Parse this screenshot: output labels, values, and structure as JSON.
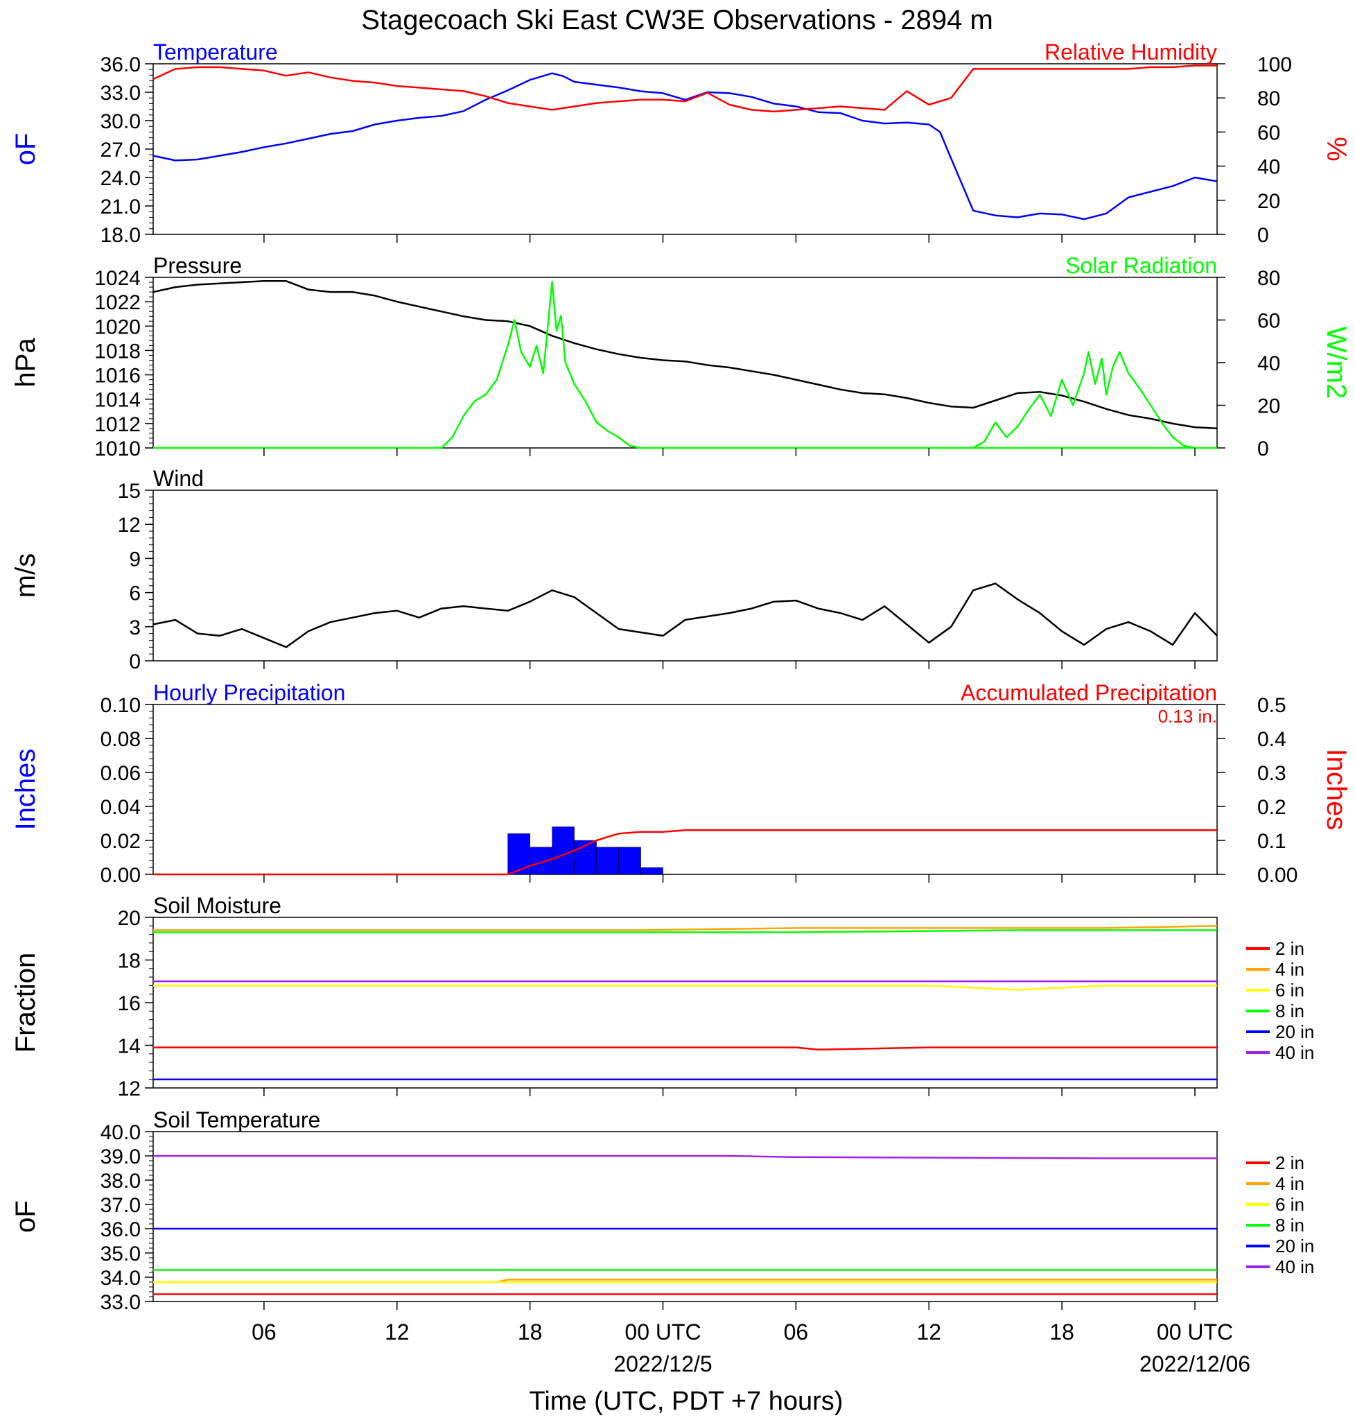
{
  "page_title": "Stagecoach Ski East CW3E Observations - 2894 m",
  "x_axis": {
    "label": "Time (UTC, PDT +7 hours)",
    "ticks": [
      {
        "hour": 6,
        "label": "06",
        "sub": ""
      },
      {
        "hour": 12,
        "label": "12",
        "sub": ""
      },
      {
        "hour": 18,
        "label": "18",
        "sub": ""
      },
      {
        "hour": 24,
        "label": "00 UTC",
        "sub": "2022/12/5"
      },
      {
        "hour": 30,
        "label": "06",
        "sub": ""
      },
      {
        "hour": 36,
        "label": "12",
        "sub": ""
      },
      {
        "hour": 42,
        "label": "18",
        "sub": ""
      },
      {
        "hour": 48,
        "label": "00 UTC",
        "sub": "2022/12/06"
      }
    ],
    "range_hours": [
      1,
      49
    ]
  },
  "colors": {
    "temperature": "#0000ff",
    "humidity": "#ff0000",
    "pressure": "#000000",
    "solar": "#00ff00",
    "wind_speed": "#000000",
    "wind_barb": "#ff0000",
    "hourly_precip": "#0000ff",
    "accum_precip": "#ff0000",
    "depth_2in": "#ff0000",
    "depth_4in": "#ffa500",
    "depth_6in": "#ffff00",
    "depth_8in": "#00ff00",
    "depth_20in": "#0000ff",
    "depth_40in": "#a020f0"
  },
  "chart_data": [
    {
      "id": "temp_rh",
      "type": "line",
      "title_left": "Temperature",
      "title_right": "Relative Humidity",
      "ylabel_left": "oF",
      "ylabel_right": "%",
      "ylim_left": [
        18,
        36
      ],
      "ylim_right": [
        0,
        100
      ],
      "yticks_left": [
        "18.0",
        "21.0",
        "24.0",
        "27.0",
        "30.0",
        "33.0",
        "36.0"
      ],
      "yticks_right": [
        "0",
        "20",
        "40",
        "60",
        "80",
        "100"
      ],
      "series": [
        {
          "name": "Temperature",
          "axis": "left",
          "color": "temperature",
          "x": [
            1,
            2,
            3,
            4,
            5,
            6,
            7,
            8,
            9,
            10,
            11,
            12,
            13,
            14,
            15,
            16,
            17,
            18,
            19,
            19.5,
            20,
            21,
            22,
            23,
            24,
            25,
            26,
            27,
            28,
            29,
            30,
            31,
            32,
            33,
            34,
            35,
            36,
            36.5,
            37,
            38,
            39,
            40,
            41,
            42,
            43,
            44,
            45,
            46,
            47,
            48,
            49
          ],
          "y": [
            26.3,
            25.8,
            25.9,
            26.3,
            26.7,
            27.2,
            27.6,
            28.1,
            28.6,
            28.9,
            29.6,
            30.0,
            30.3,
            30.5,
            31.0,
            32.2,
            33.2,
            34.3,
            35.0,
            34.7,
            34.1,
            33.8,
            33.5,
            33.1,
            32.9,
            32.2,
            33.0,
            32.9,
            32.5,
            31.8,
            31.5,
            30.9,
            30.8,
            30.0,
            29.7,
            29.8,
            29.6,
            28.8,
            26.0,
            20.5,
            20.0,
            19.8,
            20.2,
            20.1,
            19.6,
            20.2,
            21.9,
            22.5,
            23.1,
            24.0,
            23.6
          ]
        },
        {
          "name": "Relative Humidity",
          "axis": "right",
          "color": "humidity",
          "x": [
            1,
            2,
            3,
            4,
            5,
            6,
            7,
            8,
            9,
            10,
            11,
            12,
            13,
            14,
            15,
            16,
            17,
            18,
            19,
            20,
            21,
            22,
            23,
            24,
            25,
            26,
            27,
            28,
            29,
            30,
            31,
            32,
            33,
            34,
            35,
            36,
            37,
            38,
            39,
            40,
            41,
            42,
            43,
            44,
            45,
            46,
            47,
            48,
            49
          ],
          "y": [
            91,
            97,
            98,
            98,
            97,
            96,
            93,
            95,
            92,
            90,
            89,
            87,
            86,
            85,
            84,
            81,
            77,
            75,
            73,
            75,
            77,
            78,
            79,
            79,
            78,
            83,
            76,
            73,
            72,
            73,
            74,
            75,
            74,
            73,
            84,
            76,
            80,
            97,
            97,
            97,
            97,
            97,
            97,
            97,
            97,
            98,
            98,
            99,
            99
          ]
        }
      ]
    },
    {
      "id": "pressure_solar",
      "type": "line",
      "title_left": "Pressure",
      "title_right": "Solar Radiation",
      "ylabel_left": "hPa",
      "ylabel_right": "W/m2",
      "ylim_left": [
        1010,
        1024
      ],
      "ylim_right": [
        0,
        80
      ],
      "yticks_left": [
        "1010",
        "1012",
        "1014",
        "1016",
        "1018",
        "1020",
        "1022",
        "1024"
      ],
      "yticks_right": [
        "0",
        "20",
        "40",
        "60",
        "80"
      ],
      "series": [
        {
          "name": "Pressure",
          "axis": "left",
          "color": "pressure",
          "x": [
            1,
            2,
            3,
            4,
            5,
            6,
            7,
            8,
            9,
            10,
            11,
            12,
            13,
            14,
            15,
            16,
            17,
            18,
            19,
            20,
            21,
            22,
            23,
            24,
            25,
            26,
            27,
            28,
            29,
            30,
            31,
            32,
            33,
            34,
            35,
            36,
            37,
            38,
            39,
            40,
            41,
            42,
            43,
            44,
            45,
            46,
            47,
            48,
            49
          ],
          "y": [
            1022.8,
            1023.2,
            1023.4,
            1023.5,
            1023.6,
            1023.7,
            1023.7,
            1023.0,
            1022.8,
            1022.8,
            1022.5,
            1022.0,
            1021.6,
            1021.2,
            1020.8,
            1020.5,
            1020.4,
            1020.0,
            1019.2,
            1018.6,
            1018.1,
            1017.7,
            1017.4,
            1017.2,
            1017.1,
            1016.8,
            1016.6,
            1016.3,
            1016.0,
            1015.6,
            1015.2,
            1014.8,
            1014.5,
            1014.4,
            1014.1,
            1013.7,
            1013.4,
            1013.3,
            1013.9,
            1014.5,
            1014.6,
            1014.3,
            1013.8,
            1013.2,
            1012.7,
            1012.4,
            1012.0,
            1011.7,
            1011.6
          ]
        },
        {
          "name": "Solar Radiation",
          "axis": "right",
          "color": "solar",
          "x": [
            1,
            14,
            14.5,
            15,
            15.5,
            16,
            16.5,
            17,
            17.3,
            17.6,
            18,
            18.3,
            18.6,
            19,
            19.2,
            19.4,
            19.6,
            20,
            20.5,
            21,
            21.5,
            22,
            22.5,
            23,
            48,
            38,
            38.5,
            39,
            39.5,
            40,
            40.5,
            41,
            41.5,
            42,
            42.5,
            43,
            43.2,
            43.5,
            43.8,
            44,
            44.3,
            44.6,
            45,
            45.5,
            46,
            46.5,
            47,
            47.5,
            48,
            49
          ],
          "y": [
            0,
            0,
            5,
            15,
            22,
            25,
            32,
            48,
            60,
            45,
            38,
            48,
            35,
            78,
            55,
            62,
            40,
            30,
            22,
            12,
            8,
            5,
            1,
            0,
            0,
            0,
            3,
            12,
            5,
            10,
            18,
            25,
            15,
            32,
            20,
            35,
            45,
            30,
            42,
            25,
            38,
            45,
            35,
            28,
            20,
            12,
            5,
            1,
            0,
            0
          ]
        }
      ]
    },
    {
      "id": "wind",
      "type": "line",
      "title_left": "Wind",
      "ylabel_left": "m/s",
      "ylim_left": [
        0,
        15
      ],
      "yticks_left": [
        "0",
        "3",
        "6",
        "9",
        "12",
        "15"
      ],
      "series": [
        {
          "name": "Wind",
          "axis": "left",
          "color": "wind_speed",
          "x": [
            1,
            2,
            3,
            4,
            5,
            6,
            7,
            8,
            9,
            10,
            11,
            12,
            13,
            14,
            15,
            16,
            17,
            18,
            19,
            20,
            21,
            22,
            23,
            24,
            25,
            26,
            27,
            28,
            29,
            30,
            31,
            32,
            33,
            34,
            35,
            36,
            37,
            38,
            39,
            40,
            41,
            42,
            43,
            44,
            45,
            46,
            47,
            48,
            49
          ],
          "y": [
            3.2,
            3.6,
            2.4,
            2.2,
            2.8,
            2.0,
            1.2,
            2.6,
            3.4,
            3.8,
            4.2,
            4.4,
            3.8,
            4.6,
            4.8,
            4.6,
            4.4,
            5.2,
            6.2,
            5.6,
            4.2,
            2.8,
            2.5,
            2.2,
            3.6,
            3.9,
            4.2,
            4.6,
            5.2,
            5.3,
            4.6,
            4.2,
            3.6,
            4.8,
            3.2,
            1.6,
            3.0,
            6.2,
            6.8,
            5.4,
            4.2,
            2.6,
            1.4,
            2.8,
            3.4,
            2.6,
            1.4,
            4.2,
            2.2
          ]
        }
      ]
    },
    {
      "id": "precip",
      "type": "bar",
      "title_left": "Hourly Precipitation",
      "title_right": "Accumulated Precipitation",
      "annotation": "0.13 in.",
      "ylabel_left": "Inches",
      "ylabel_right": "Inches",
      "ylim_left": [
        0,
        0.1
      ],
      "ylim_right": [
        0,
        0.5
      ],
      "yticks_left": [
        "0.00",
        "0.02",
        "0.04",
        "0.06",
        "0.08",
        "0.10"
      ],
      "yticks_right": [
        "0.00",
        "0.1",
        "0.2",
        "0.3",
        "0.4",
        "0.5"
      ],
      "series": [
        {
          "name": "Hourly Precipitation",
          "axis": "left",
          "color": "hourly_precip",
          "kind": "bar",
          "x": [
            17,
            18,
            19,
            20,
            21,
            22,
            23
          ],
          "y": [
            0.024,
            0.016,
            0.028,
            0.02,
            0.016,
            0.016,
            0.004
          ]
        },
        {
          "name": "Accumulated Precipitation",
          "axis": "right",
          "color": "accum_precip",
          "x": [
            1,
            17,
            17.4,
            18,
            19,
            20,
            21,
            22,
            23,
            24,
            25,
            49
          ],
          "y": [
            0,
            0,
            0.01,
            0.025,
            0.045,
            0.07,
            0.1,
            0.12,
            0.125,
            0.125,
            0.13,
            0.13
          ]
        }
      ]
    },
    {
      "id": "soil_moisture",
      "type": "line",
      "title_left": "Soil Moisture",
      "ylabel_left": "Fraction",
      "ylim_left": [
        12,
        20
      ],
      "yticks_left": [
        "12",
        "14",
        "16",
        "18",
        "20"
      ],
      "legend": {
        "placement": "right",
        "entries": [
          "2 in",
          "4 in",
          "6 in",
          "8 in",
          "20 in",
          "40 in"
        ]
      },
      "series": [
        {
          "name": "2 in",
          "axis": "left",
          "color": "depth_2in",
          "x": [
            1,
            30,
            31,
            36,
            49
          ],
          "y": [
            13.9,
            13.9,
            13.8,
            13.9,
            13.9
          ]
        },
        {
          "name": "4 in",
          "axis": "left",
          "color": "depth_4in",
          "x": [
            1,
            23,
            30,
            44,
            49
          ],
          "y": [
            19.4,
            19.4,
            19.5,
            19.5,
            19.6
          ]
        },
        {
          "name": "6 in",
          "axis": "left",
          "color": "depth_6in",
          "x": [
            1,
            36,
            40,
            44,
            49
          ],
          "y": [
            16.8,
            16.8,
            16.6,
            16.8,
            16.8
          ]
        },
        {
          "name": "8 in",
          "axis": "left",
          "color": "depth_8in",
          "x": [
            1,
            20,
            30,
            40,
            49
          ],
          "y": [
            19.3,
            19.3,
            19.3,
            19.4,
            19.4
          ]
        },
        {
          "name": "20 in",
          "axis": "left",
          "color": "depth_20in",
          "x": [
            1,
            49
          ],
          "y": [
            12.4,
            12.4
          ]
        },
        {
          "name": "40 in",
          "axis": "left",
          "color": "depth_40in",
          "x": [
            1,
            49
          ],
          "y": [
            17.0,
            17.0
          ]
        }
      ]
    },
    {
      "id": "soil_temperature",
      "type": "line",
      "title_left": "Soil Temperature",
      "ylabel_left": "oF",
      "ylim_left": [
        33,
        40
      ],
      "yticks_left": [
        "33.0",
        "34.0",
        "35.0",
        "36.0",
        "37.0",
        "38.0",
        "39.0",
        "40.0"
      ],
      "legend": {
        "placement": "right",
        "entries": [
          "2 in",
          "4 in",
          "6 in",
          "8 in",
          "20 in",
          "40 in"
        ]
      },
      "series": [
        {
          "name": "2 in",
          "axis": "left",
          "color": "depth_2in",
          "x": [
            1,
            49
          ],
          "y": [
            33.3,
            33.3
          ]
        },
        {
          "name": "4 in",
          "axis": "left",
          "color": "depth_4in",
          "x": [
            1,
            16.5,
            17,
            49
          ],
          "y": [
            33.8,
            33.8,
            33.9,
            33.9
          ]
        },
        {
          "name": "6 in",
          "axis": "left",
          "color": "depth_6in",
          "x": [
            1,
            49
          ],
          "y": [
            33.8,
            33.8
          ]
        },
        {
          "name": "8 in",
          "axis": "left",
          "color": "depth_8in",
          "x": [
            1,
            49
          ],
          "y": [
            34.3,
            34.3
          ]
        },
        {
          "name": "20 in",
          "axis": "left",
          "color": "depth_20in",
          "x": [
            1,
            49
          ],
          "y": [
            36.0,
            36.0
          ]
        },
        {
          "name": "40 in",
          "axis": "left",
          "color": "depth_40in",
          "x": [
            1,
            27,
            30,
            44,
            49
          ],
          "y": [
            39.0,
            39.0,
            38.95,
            38.9,
            38.9
          ]
        }
      ]
    }
  ]
}
